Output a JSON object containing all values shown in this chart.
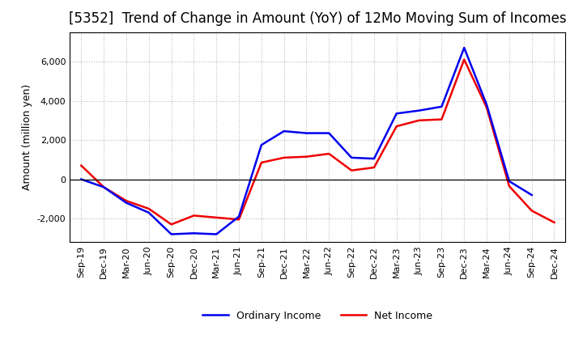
{
  "title": "[5352]  Trend of Change in Amount (YoY) of 12Mo Moving Sum of Incomes",
  "ylabel": "Amount (million yen)",
  "x_labels": [
    "Sep-19",
    "Dec-19",
    "Mar-20",
    "Jun-20",
    "Sep-20",
    "Dec-20",
    "Mar-21",
    "Jun-21",
    "Sep-21",
    "Dec-21",
    "Mar-22",
    "Jun-22",
    "Sep-22",
    "Dec-22",
    "Mar-23",
    "Jun-23",
    "Sep-23",
    "Dec-23",
    "Mar-24",
    "Jun-24",
    "Sep-24",
    "Dec-24"
  ],
  "ordinary_income": [
    0,
    -400,
    -1200,
    -1700,
    -2800,
    -2750,
    -2800,
    -1900,
    1750,
    2450,
    2350,
    2350,
    1100,
    1050,
    3350,
    3500,
    3700,
    6700,
    3800,
    -100,
    -800,
    null
  ],
  "net_income": [
    700,
    -400,
    -1100,
    -1500,
    -2300,
    -1850,
    -1950,
    -2050,
    850,
    1100,
    1150,
    1300,
    450,
    600,
    2700,
    3000,
    3050,
    6100,
    3650,
    -350,
    -1600,
    -2200
  ],
  "ordinary_color": "#0000ee",
  "net_color": "#ee0000",
  "line_width": 1.8,
  "ylim": [
    -3200,
    7500
  ],
  "yticks": [
    -2000,
    0,
    2000,
    4000,
    6000
  ],
  "background_color": "#ffffff",
  "grid_color": "#bbbbbb",
  "title_fontsize": 12,
  "legend_labels": [
    "Ordinary Income",
    "Net Income"
  ]
}
